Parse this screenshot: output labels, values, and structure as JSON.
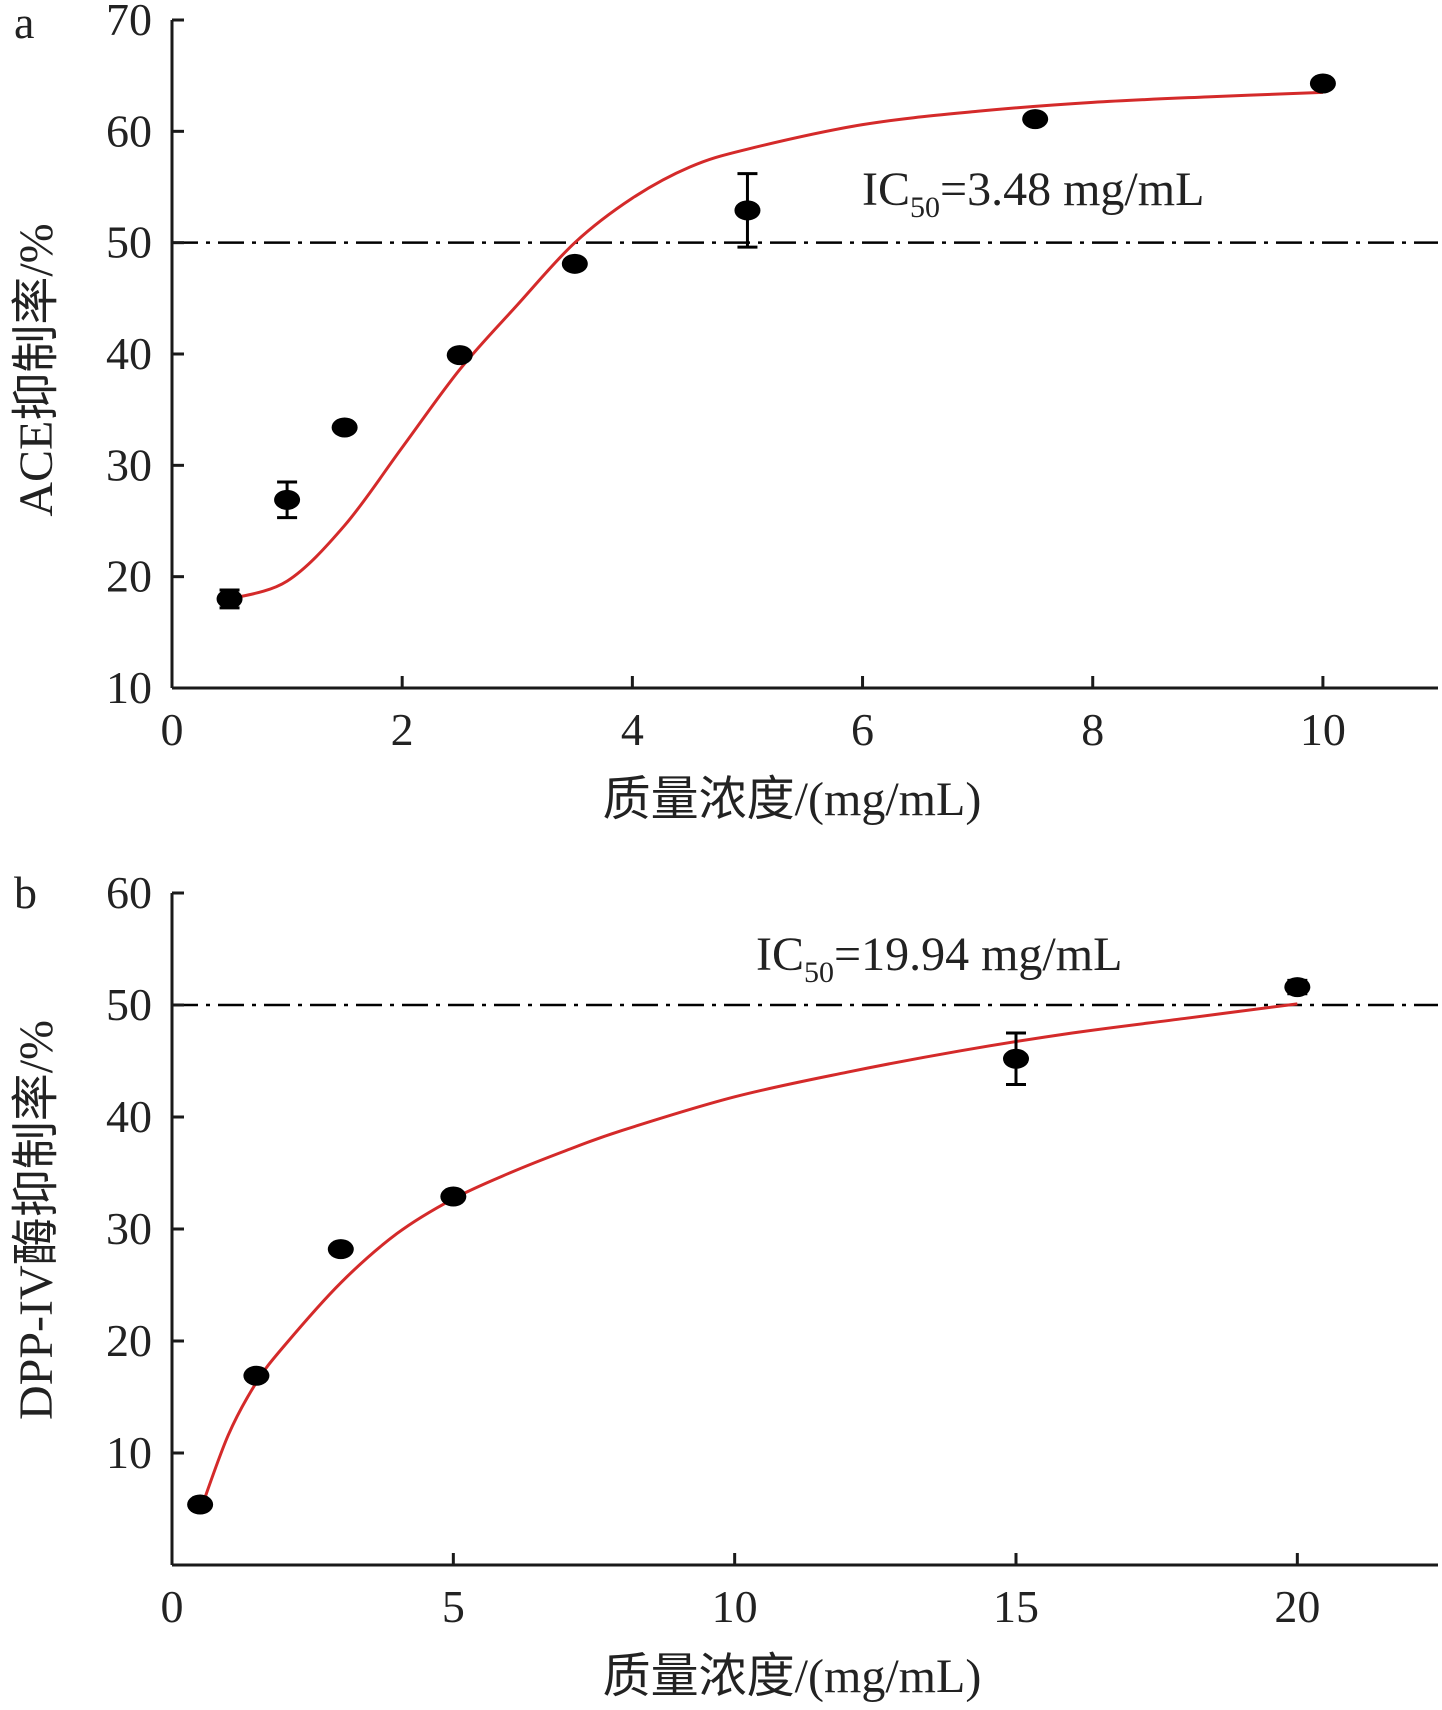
{
  "colors": {
    "axis": "#1a1a1a",
    "fit_line": "#d42a2a",
    "points": "#000000",
    "reference_line": "#000000"
  },
  "chart_data": [
    {
      "panel_label": "a",
      "type": "scatter",
      "xlabel": "质量浓度/(mg/mL)",
      "ylabel": "ACE抑制率/%",
      "xlim": [
        0,
        11
      ],
      "ylim": [
        10,
        70
      ],
      "x_ticks": [
        "0",
        "2",
        "4",
        "6",
        "8",
        "10"
      ],
      "y_ticks": [
        "10",
        "20",
        "30",
        "40",
        "50",
        "60",
        "70"
      ],
      "points": [
        {
          "x": 0.5,
          "y": 18.0,
          "err": 0.8
        },
        {
          "x": 1.0,
          "y": 26.9,
          "err": 1.6
        },
        {
          "x": 1.5,
          "y": 33.4,
          "err": 0.4
        },
        {
          "x": 2.5,
          "y": 39.9,
          "err": 0.4
        },
        {
          "x": 3.5,
          "y": 48.1,
          "err": 0.4
        },
        {
          "x": 5.0,
          "y": 52.9,
          "err": 3.3
        },
        {
          "x": 7.5,
          "y": 61.1,
          "err": 0.4
        },
        {
          "x": 10.0,
          "y": 64.3,
          "err": 0.4
        }
      ],
      "fit_curve": [
        [
          0.5,
          18.0
        ],
        [
          1.0,
          19.6
        ],
        [
          1.5,
          24.6
        ],
        [
          2.0,
          31.6
        ],
        [
          2.5,
          38.6
        ],
        [
          3.0,
          44.4
        ],
        [
          3.5,
          50.0
        ],
        [
          4.0,
          54.0
        ],
        [
          4.5,
          56.8
        ],
        [
          5.0,
          58.4
        ],
        [
          6.0,
          60.6
        ],
        [
          7.0,
          61.8
        ],
        [
          8.0,
          62.6
        ],
        [
          9.0,
          63.1
        ],
        [
          10.0,
          63.5
        ]
      ],
      "reference_line": {
        "y": 50,
        "style": "dash-dot"
      },
      "annotation": {
        "prefix": "IC",
        "subscript": "50",
        "suffix": "=3.48 mg/mL"
      }
    },
    {
      "panel_label": "b",
      "type": "scatter",
      "xlabel": "质量浓度/(mg/mL)",
      "ylabel": "DPP-IV酶抑制率/%",
      "xlim": [
        0,
        22.5
      ],
      "ylim": [
        0,
        60
      ],
      "x_ticks": [
        "0",
        "5",
        "10",
        "15",
        "20"
      ],
      "y_ticks": [
        "10",
        "20",
        "30",
        "40",
        "50",
        "60"
      ],
      "points": [
        {
          "x": 0.5,
          "y": 5.4,
          "err": 0.3
        },
        {
          "x": 1.5,
          "y": 16.9,
          "err": 0.4
        },
        {
          "x": 3.0,
          "y": 28.2,
          "err": 0.4
        },
        {
          "x": 5.0,
          "y": 32.9,
          "err": 0.4
        },
        {
          "x": 15.0,
          "y": 45.2,
          "err": 2.3
        },
        {
          "x": 20.0,
          "y": 51.6,
          "err": 0.6
        }
      ],
      "fit_curve": [
        [
          0.5,
          4.8
        ],
        [
          1.0,
          11.6
        ],
        [
          1.5,
          16.3
        ],
        [
          2.0,
          19.6
        ],
        [
          3.0,
          25.2
        ],
        [
          4.0,
          29.6
        ],
        [
          5.0,
          32.7
        ],
        [
          6.0,
          35.0
        ],
        [
          7.0,
          37.0
        ],
        [
          8.0,
          38.8
        ],
        [
          10.0,
          41.8
        ],
        [
          12.0,
          44.0
        ],
        [
          14.0,
          45.9
        ],
        [
          16.0,
          47.5
        ],
        [
          18.0,
          48.8
        ],
        [
          20.0,
          50.1
        ]
      ],
      "reference_line": {
        "y": 50,
        "style": "dash-dot"
      },
      "annotation": {
        "prefix": "IC",
        "subscript": "50",
        "suffix": "=19.94 mg/mL"
      }
    }
  ]
}
